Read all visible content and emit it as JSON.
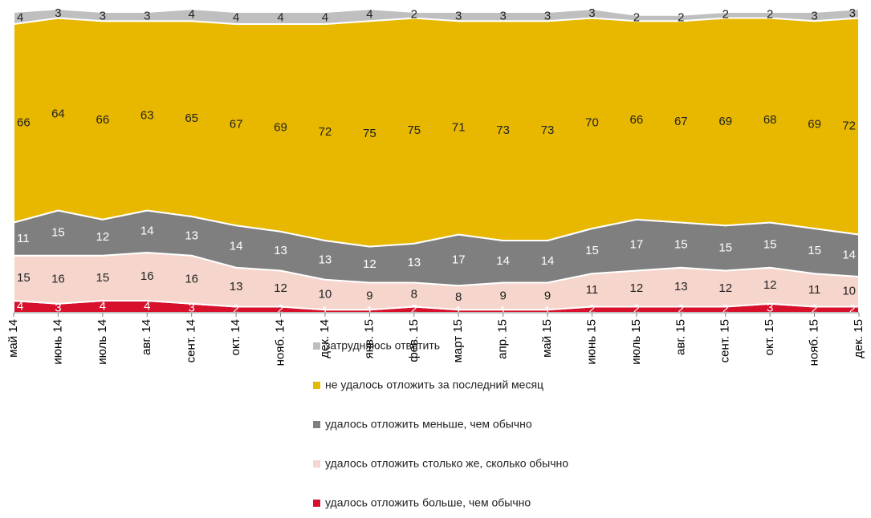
{
  "chart_data": {
    "type": "stacked_area",
    "categories": [
      "май 14",
      "июнь 14",
      "июль 14",
      "авг. 14",
      "сент. 14",
      "окт. 14",
      "нояб. 14",
      "дек. 14",
      "янв. 15",
      "фев. 15",
      "март 15",
      "апр. 15",
      "май 15",
      "июнь 15",
      "июль 15",
      "авг. 15",
      "сент. 15",
      "окт. 15",
      "нояб. 15",
      "дек. 15"
    ],
    "series": [
      {
        "name": "удалось отложить больше, чем обычно",
        "color": "#d7102b",
        "values": [
          4,
          3,
          4,
          4,
          3,
          2,
          2,
          1,
          1,
          2,
          1,
          1,
          1,
          2,
          2,
          2,
          2,
          3,
          2,
          2
        ]
      },
      {
        "name": "удалось отложить столько же, сколько обычно",
        "color": "#f6d6cc",
        "values": [
          15,
          16,
          15,
          16,
          16,
          13,
          12,
          10,
          9,
          8,
          8,
          9,
          9,
          11,
          12,
          13,
          12,
          12,
          11,
          10
        ]
      },
      {
        "name": "удалось отложить меньше, чем обычно",
        "color": "#7f7f7f",
        "values": [
          11,
          15,
          12,
          14,
          13,
          14,
          13,
          13,
          12,
          13,
          17,
          14,
          14,
          15,
          17,
          15,
          15,
          15,
          15,
          14
        ]
      },
      {
        "name": "не удалось отложить за последний месяц",
        "color": "#e8b800",
        "values": [
          66,
          64,
          66,
          63,
          65,
          67,
          69,
          72,
          75,
          75,
          71,
          73,
          73,
          70,
          66,
          67,
          69,
          68,
          69,
          72
        ]
      },
      {
        "name": "затрудняюсь ответить",
        "color": "#bfbfbf",
        "values": [
          4,
          3,
          3,
          3,
          4,
          4,
          4,
          4,
          4,
          2,
          3,
          3,
          3,
          3,
          2,
          2,
          2,
          2,
          3,
          3
        ]
      }
    ],
    "ylim": [
      0,
      100
    ]
  }
}
